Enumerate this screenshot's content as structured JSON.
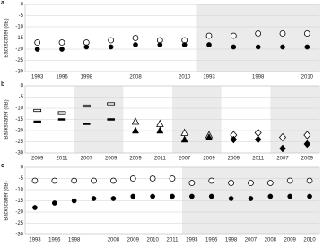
{
  "chart_data": [
    {
      "type": "dot",
      "panel_label": "a",
      "y_label": "Backscatter (dB)",
      "categories": [
        "1993",
        "1996",
        "1998",
        null,
        "2008",
        null,
        "2010",
        "1993",
        null,
        "1998",
        null,
        "2010"
      ],
      "ylim": [
        -30,
        0
      ],
      "yticks": [
        0,
        -5,
        -10,
        -15,
        -20,
        -25,
        -30
      ],
      "grid": true,
      "series": [
        {
          "marker": "open-circle",
          "color": "#000000",
          "values": [
            -17,
            -17,
            -17,
            -16,
            -15,
            -16,
            -16,
            -14,
            -14,
            -13,
            -13,
            -13
          ]
        },
        {
          "marker": "filled-circle",
          "color": "#000000",
          "values": [
            -20,
            -20,
            -19,
            -19,
            -18,
            -18,
            -18,
            -18,
            -19,
            -19,
            -19,
            -19
          ]
        }
      ]
    },
    {
      "type": "dot",
      "panel_label": "b",
      "y_label": "Backscatter (dB)",
      "categories": [
        "2009",
        "2011",
        "2007",
        "2009",
        "2009",
        "2011",
        "2007",
        "2009",
        "2009",
        "2011",
        "2007",
        "2009"
      ],
      "ylim": [
        -30,
        0
      ],
      "yticks": [
        0,
        -5,
        -10,
        -15,
        -20,
        -25,
        -30
      ],
      "grid": true,
      "series": [
        {
          "markers": [
            "open-dash",
            "open-dash",
            "open-dash",
            "open-dash",
            "open-triangle",
            "open-triangle",
            "open-triangle",
            "open-triangle",
            "open-diamond",
            "open-diamond",
            "open-diamond",
            "open-diamond"
          ],
          "color": "#000000",
          "values": [
            -11,
            -12,
            -9,
            -8,
            -16,
            -17,
            -21,
            -22,
            -22,
            -21,
            -23,
            -22
          ]
        },
        {
          "markers": [
            "filled-dash",
            "filled-dash",
            "filled-dash",
            "filled-dash",
            "filled-triangle",
            "filled-triangle",
            "filled-triangle",
            "filled-triangle",
            "filled-diamond",
            "filled-diamond",
            "filled-diamond",
            "filled-diamond"
          ],
          "color": "#000000",
          "values": [
            -16,
            -15,
            -17,
            -15,
            -20,
            -20,
            -24,
            -23,
            -24,
            -24,
            -28,
            -26
          ]
        }
      ]
    },
    {
      "type": "dot",
      "panel_label": "c",
      "y_label": "Backscatter (dB)",
      "categories": [
        "1993",
        "1996",
        "1998",
        null,
        "2008",
        "2009",
        "2010",
        "2011",
        "1993",
        "1996",
        "1998",
        "2007",
        "2008",
        "2009",
        "2010"
      ],
      "ylim": [
        -30,
        0
      ],
      "yticks": [
        0,
        -5,
        -10,
        -15,
        -20,
        -25,
        -30
      ],
      "grid": true,
      "series": [
        {
          "marker": "open-circle",
          "color": "#000000",
          "values": [
            -6,
            -6,
            -6,
            -6,
            -6,
            -5,
            -5,
            -5,
            -7,
            -6,
            -7,
            -7,
            -7,
            -6,
            -6
          ]
        },
        {
          "marker": "filled-circle",
          "color": "#000000",
          "values": [
            -18,
            -16,
            -15,
            -14,
            -14,
            -13,
            -13,
            -13,
            -13,
            -13,
            -14,
            -14,
            -13,
            -13,
            -13
          ]
        }
      ]
    }
  ]
}
